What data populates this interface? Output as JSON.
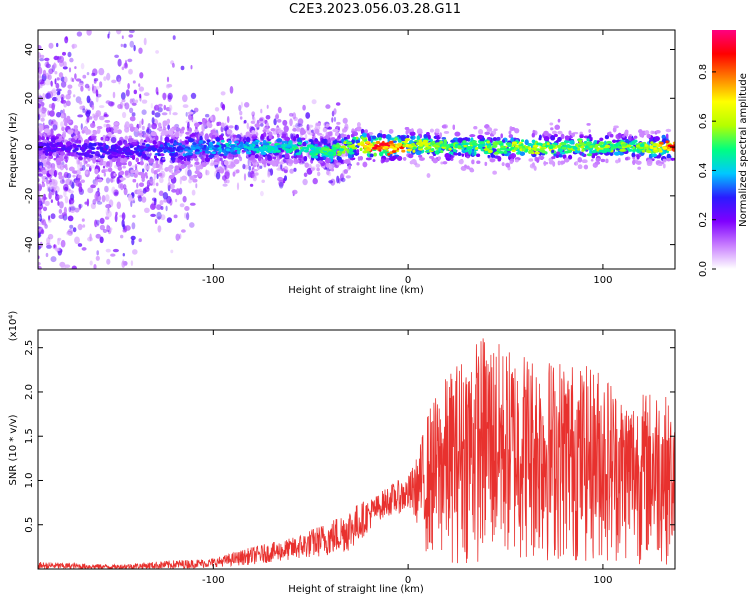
{
  "title": "C2E3.2023.056.03.28.G11",
  "colorbar": {
    "label": "Normalized spectral amplitude",
    "ticks": [
      "0.0",
      "0.2",
      "0.4",
      "0.6",
      "0.8"
    ],
    "tick_values": [
      0,
      0.2,
      0.4,
      0.6,
      0.8
    ],
    "range": [
      0,
      0.97
    ]
  },
  "chart_data": [
    {
      "type": "heatmap",
      "xlabel": "Height of straight line (km)",
      "ylabel": "Frequency (Hz)",
      "xlim": [
        -190,
        137
      ],
      "ylim": [
        -50,
        48
      ],
      "x_ticks": [
        -100,
        0,
        100
      ],
      "x_tick_labels": [
        "-100",
        "0",
        "100"
      ],
      "y_ticks": [
        -40,
        -20,
        0,
        20,
        40
      ],
      "y_tick_labels": [
        "-40",
        "-20",
        "0",
        "20",
        "40"
      ],
      "colormap": [
        "#ffffff",
        "#c87dff",
        "#7f00ff",
        "#2a1cff",
        "#00c8ff",
        "#00ff80",
        "#b4ff00",
        "#ffff00",
        "#ff8000",
        "#ff0000",
        "#ff0080"
      ],
      "ridge": {
        "x": [
          -190,
          -160,
          -140,
          -120,
          -100,
          -80,
          -60,
          -40,
          -30,
          -25,
          -20,
          -10,
          0,
          20,
          40,
          60,
          80,
          100,
          120,
          137
        ],
        "freq": [
          0,
          -1,
          -2,
          -1,
          0,
          0,
          0,
          -2,
          0,
          2,
          0,
          0,
          1,
          0,
          0,
          0,
          0,
          0,
          0,
          0
        ],
        "amplitude": [
          0.25,
          0.28,
          0.3,
          0.35,
          0.4,
          0.45,
          0.5,
          0.55,
          0.6,
          0.65,
          0.9,
          0.95,
          0.7,
          0.6,
          0.6,
          0.65,
          0.6,
          0.6,
          0.6,
          0.95
        ]
      }
    },
    {
      "type": "line",
      "xlabel": "Height of straight line (km)",
      "ylabel": "SNR (10 * v/v)",
      "y_multiplier": "(x10⁴)",
      "xlim": [
        -190,
        137
      ],
      "ylim": [
        0,
        2.7
      ],
      "x_ticks": [
        -100,
        0,
        100
      ],
      "x_tick_labels": [
        "-100",
        "0",
        "100"
      ],
      "y_ticks": [
        0.5,
        1.0,
        1.5,
        2.0,
        2.5
      ],
      "y_tick_labels": [
        "0.5",
        "1.0",
        "1.5",
        "2.0",
        "2.5"
      ],
      "series": [
        {
          "color": "#e8312e",
          "envelope": {
            "x": [
              -190,
              -150,
              -120,
              -100,
              -80,
              -60,
              -40,
              -30,
              -15,
              -10,
              0,
              5,
              10,
              20,
              30,
              40,
              50,
              60,
              70,
              80,
              90,
              100,
              110,
              120,
              130,
              137
            ],
            "low": [
              0.0,
              0.0,
              0.0,
              0.02,
              0.05,
              0.1,
              0.15,
              0.2,
              0.55,
              0.6,
              0.65,
              0.5,
              0.1,
              0.05,
              0.05,
              0.05,
              0.05,
              0.05,
              0.05,
              0.05,
              0.05,
              0.05,
              0.05,
              0.05,
              0.05,
              0.05
            ],
            "high": [
              0.08,
              0.05,
              0.1,
              0.12,
              0.25,
              0.35,
              0.55,
              0.7,
              0.85,
              0.95,
              1.05,
              1.3,
              1.8,
              2.2,
              2.5,
              2.7,
              2.5,
              2.5,
              2.4,
              2.4,
              2.3,
              2.3,
              2.0,
              2.0,
              2.1,
              1.7
            ]
          }
        }
      ]
    }
  ]
}
